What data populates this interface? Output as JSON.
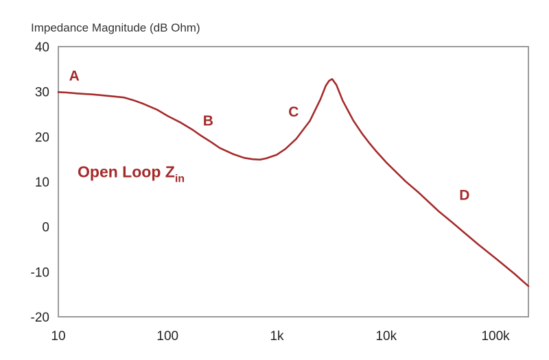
{
  "chart_data": {
    "type": "line",
    "ylabel": "Impedance Magnitude (dB Ohm)",
    "xlabel": "",
    "xscale": "log",
    "xlim": [
      10,
      200000
    ],
    "ylim": [
      -20,
      40
    ],
    "grid": false,
    "xticks": [
      {
        "value": 10,
        "label": "10"
      },
      {
        "value": 100,
        "label": "100"
      },
      {
        "value": 1000,
        "label": "1k"
      },
      {
        "value": 10000,
        "label": "10k"
      },
      {
        "value": 100000,
        "label": "100k"
      }
    ],
    "yticks": [
      {
        "value": 40,
        "label": "40"
      },
      {
        "value": 30,
        "label": "30"
      },
      {
        "value": 20,
        "label": "20"
      },
      {
        "value": 10,
        "label": "10"
      },
      {
        "value": 0,
        "label": "0"
      },
      {
        "value": -10,
        "label": "-10"
      },
      {
        "value": -20,
        "label": "-20"
      }
    ],
    "series": [
      {
        "name": "",
        "label": {
          "main": "Open Loop Z",
          "sub": "in"
        },
        "color": "#a52a2a",
        "x": [
          10,
          12,
          15,
          20,
          25,
          30,
          40,
          50,
          60,
          80,
          100,
          130,
          170,
          200,
          250,
          300,
          400,
          500,
          600,
          700,
          800,
          1000,
          1200,
          1500,
          2000,
          2500,
          2800,
          3000,
          3200,
          3500,
          4000,
          5000,
          6000,
          7000,
          8000,
          10000,
          15000,
          20000,
          30000,
          40000,
          50000,
          70000,
          100000,
          150000,
          200000
        ],
        "y": [
          29.9,
          29.8,
          29.6,
          29.4,
          29.2,
          29.0,
          28.7,
          28.0,
          27.3,
          26.0,
          24.6,
          23.2,
          21.5,
          20.3,
          18.8,
          17.5,
          16.1,
          15.3,
          15.0,
          14.9,
          15.2,
          16.0,
          17.3,
          19.5,
          23.5,
          28.3,
          31.3,
          32.4,
          32.8,
          31.5,
          28.0,
          23.6,
          20.7,
          18.6,
          16.9,
          14.3,
          10.1,
          7.5,
          3.5,
          1.0,
          -1.0,
          -4.0,
          -7.0,
          -10.5,
          -13.2
        ]
      }
    ],
    "annotations": [
      {
        "text": "A",
        "x": 14,
        "y": 32.5
      },
      {
        "text": "B",
        "x": 235,
        "y": 22.5
      },
      {
        "text": "C",
        "x": 1420,
        "y": 24.5
      },
      {
        "text": "D",
        "x": 52000,
        "y": 6
      }
    ]
  }
}
